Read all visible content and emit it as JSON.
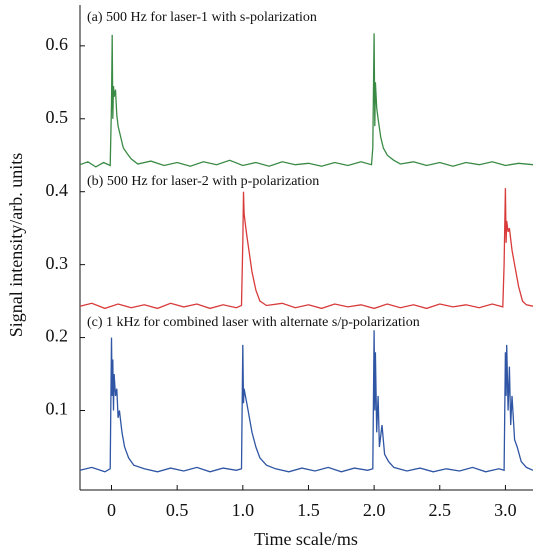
{
  "chart_data": {
    "type": "line",
    "xlabel": "Time scale/ms",
    "ylabel": "Signal intensity/arb. units",
    "xlim": [
      -0.24,
      3.21
    ],
    "ylim": [
      -0.009,
      0.656
    ],
    "xticks": [
      0,
      0.5,
      {
        "value": 1,
        "label": "1.0"
      },
      1.5,
      {
        "value": 2,
        "label": "2.0"
      },
      2.5,
      {
        "value": 3,
        "label": "3.0"
      }
    ],
    "yticks": [
      0.1,
      0.2,
      0.3,
      0.4,
      0.5,
      0.6
    ],
    "series": [
      {
        "name": "(a) 500 Hz for laser-1 with s-polarization",
        "color": "#3a8a45",
        "x": [
          -0.24,
          -0.18,
          -0.12,
          -0.06,
          -0.01,
          0.0,
          0.005,
          0.01,
          0.015,
          0.02,
          0.03,
          0.04,
          0.05,
          0.07,
          0.09,
          0.12,
          0.15,
          0.2,
          0.3,
          0.4,
          0.5,
          0.6,
          0.7,
          0.8,
          0.9,
          1.0,
          1.1,
          1.2,
          1.3,
          1.4,
          1.5,
          1.6,
          1.7,
          1.8,
          1.9,
          1.98,
          1.99,
          2.0,
          2.005,
          2.01,
          2.02,
          2.03,
          2.05,
          2.07,
          2.1,
          2.15,
          2.2,
          2.3,
          2.4,
          2.5,
          2.6,
          2.7,
          2.8,
          2.9,
          3.0,
          3.1,
          3.21
        ],
        "values": [
          0.437,
          0.441,
          0.434,
          0.44,
          0.436,
          0.52,
          0.615,
          0.5,
          0.545,
          0.53,
          0.54,
          0.505,
          0.49,
          0.475,
          0.46,
          0.452,
          0.445,
          0.438,
          0.442,
          0.436,
          0.44,
          0.435,
          0.441,
          0.437,
          0.443,
          0.436,
          0.44,
          0.435,
          0.441,
          0.437,
          0.439,
          0.435,
          0.44,
          0.436,
          0.441,
          0.437,
          0.46,
          0.617,
          0.49,
          0.55,
          0.515,
          0.5,
          0.475,
          0.46,
          0.45,
          0.443,
          0.438,
          0.441,
          0.436,
          0.44,
          0.435,
          0.44,
          0.437,
          0.441,
          0.436,
          0.439,
          0.437
        ]
      },
      {
        "name": "(b) 500 Hz for laser-2 with p-polarization",
        "color": "#d93a3a",
        "x": [
          -0.24,
          -0.15,
          -0.05,
          0.05,
          0.15,
          0.25,
          0.35,
          0.45,
          0.55,
          0.65,
          0.75,
          0.85,
          0.95,
          0.99,
          1.0,
          1.005,
          1.01,
          1.02,
          1.03,
          1.05,
          1.07,
          1.1,
          1.13,
          1.18,
          1.3,
          1.4,
          1.5,
          1.6,
          1.7,
          1.8,
          1.9,
          2.0,
          2.1,
          2.2,
          2.3,
          2.4,
          2.5,
          2.6,
          2.7,
          2.8,
          2.9,
          2.98,
          2.99,
          3.0,
          3.005,
          3.01,
          3.02,
          3.03,
          3.05,
          3.07,
          3.1,
          3.13,
          3.16,
          3.21
        ],
        "values": [
          0.243,
          0.247,
          0.24,
          0.246,
          0.241,
          0.245,
          0.24,
          0.247,
          0.242,
          0.246,
          0.24,
          0.245,
          0.241,
          0.244,
          0.33,
          0.4,
          0.37,
          0.355,
          0.34,
          0.315,
          0.29,
          0.265,
          0.25,
          0.244,
          0.247,
          0.241,
          0.245,
          0.24,
          0.246,
          0.242,
          0.245,
          0.24,
          0.246,
          0.241,
          0.245,
          0.24,
          0.246,
          0.242,
          0.245,
          0.241,
          0.246,
          0.242,
          0.3,
          0.405,
          0.33,
          0.36,
          0.345,
          0.35,
          0.32,
          0.3,
          0.27,
          0.25,
          0.245,
          0.243
        ]
      },
      {
        "name": "(c) 1 kHz for combined laser with alternate s/p-polarization",
        "color": "#2f55a4",
        "x": [
          -0.24,
          -0.15,
          -0.05,
          -0.01,
          0.0,
          0.005,
          0.01,
          0.015,
          0.02,
          0.03,
          0.04,
          0.05,
          0.06,
          0.08,
          0.1,
          0.13,
          0.17,
          0.25,
          0.35,
          0.45,
          0.55,
          0.65,
          0.75,
          0.85,
          0.95,
          0.99,
          1.0,
          1.005,
          1.01,
          1.02,
          1.03,
          1.05,
          1.07,
          1.1,
          1.13,
          1.18,
          1.25,
          1.35,
          1.45,
          1.55,
          1.65,
          1.75,
          1.85,
          1.95,
          1.99,
          2.0,
          2.005,
          2.01,
          2.02,
          2.03,
          2.04,
          2.06,
          2.08,
          2.11,
          2.15,
          2.25,
          2.35,
          2.45,
          2.55,
          2.65,
          2.75,
          2.85,
          2.95,
          2.99,
          3.0,
          3.005,
          3.01,
          3.02,
          3.03,
          3.04,
          3.05,
          3.07,
          3.09,
          3.12,
          3.16,
          3.21
        ],
        "values": [
          0.018,
          0.022,
          0.016,
          0.02,
          0.2,
          0.12,
          0.17,
          0.1,
          0.15,
          0.12,
          0.13,
          0.09,
          0.1,
          0.07,
          0.05,
          0.035,
          0.025,
          0.02,
          0.016,
          0.021,
          0.017,
          0.022,
          0.016,
          0.021,
          0.018,
          0.02,
          0.19,
          0.11,
          0.13,
          0.12,
          0.11,
          0.09,
          0.07,
          0.05,
          0.035,
          0.025,
          0.02,
          0.016,
          0.021,
          0.017,
          0.022,
          0.016,
          0.021,
          0.018,
          0.02,
          0.21,
          0.1,
          0.18,
          0.07,
          0.12,
          0.05,
          0.08,
          0.04,
          0.03,
          0.022,
          0.017,
          0.021,
          0.016,
          0.02,
          0.017,
          0.022,
          0.016,
          0.02,
          0.018,
          0.18,
          0.12,
          0.19,
          0.1,
          0.16,
          0.08,
          0.12,
          0.06,
          0.05,
          0.03,
          0.022,
          0.018
        ]
      }
    ]
  }
}
